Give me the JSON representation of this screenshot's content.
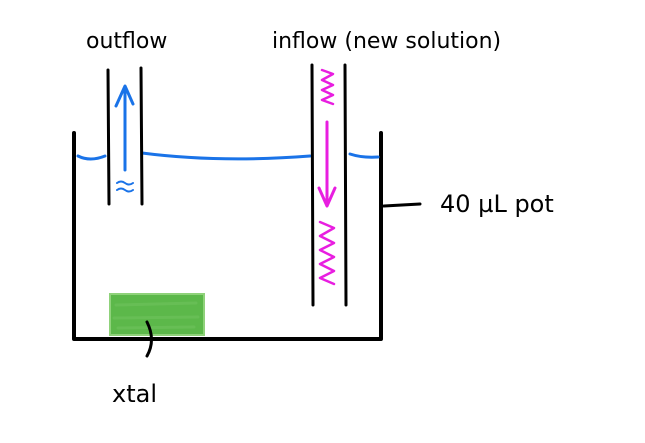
{
  "labels": {
    "outflow": "outflow",
    "inflow": "inflow (new solution)",
    "pot": "40 µL pot",
    "crystal": "xtal"
  },
  "colors": {
    "ink": "#000000",
    "water": "#1a73e8",
    "new_solution": "#e81ee0",
    "crystal_fill": "#5cb84a",
    "crystal_edge": "#8fd27a"
  }
}
